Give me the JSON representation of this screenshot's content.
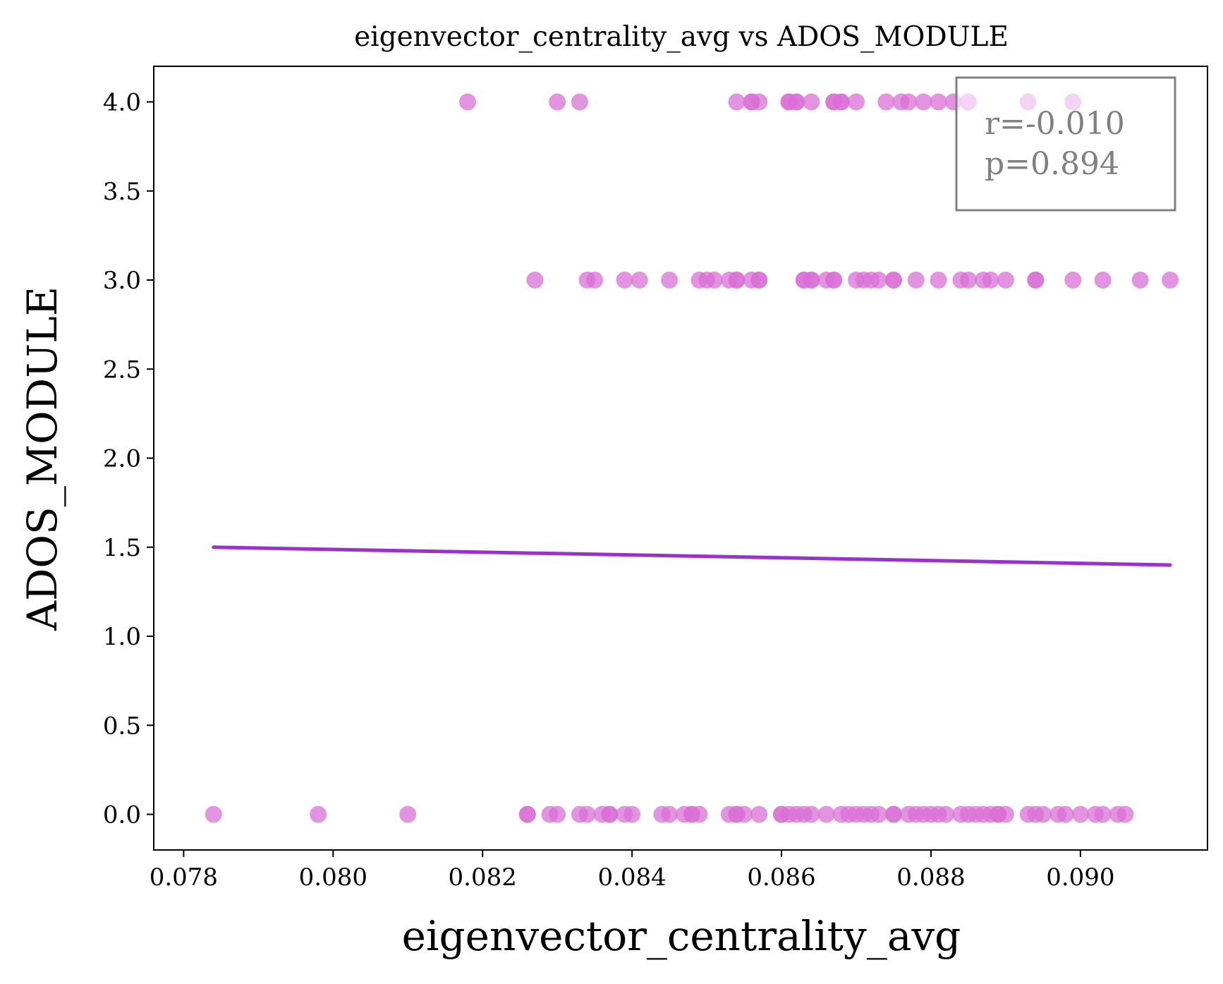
{
  "chart_data": {
    "type": "scatter",
    "title": "eigenvector_centrality_avg vs ADOS_MODULE",
    "xlabel": "eigenvector_centrality_avg",
    "ylabel": "ADOS_MODULE",
    "xlim": [
      0.0776,
      0.0917
    ],
    "ylim": [
      -0.2,
      4.2
    ],
    "xticks": [
      0.078,
      0.08,
      0.082,
      0.084,
      0.086,
      0.088,
      0.09
    ],
    "xtick_labels": [
      "0.078",
      "0.080",
      "0.082",
      "0.084",
      "0.086",
      "0.088",
      "0.090"
    ],
    "yticks": [
      0.0,
      0.5,
      1.0,
      1.5,
      2.0,
      2.5,
      3.0,
      3.5,
      4.0
    ],
    "ytick_labels": [
      "0.0",
      "0.5",
      "1.0",
      "1.5",
      "2.0",
      "2.5",
      "3.0",
      "3.5",
      "4.0"
    ],
    "grid": false,
    "point_color": "#da70d6",
    "line_color": "#9932cc",
    "series": [
      {
        "name": "ADOS_MODULE 4",
        "y": 4,
        "x": [
          0.0818,
          0.083,
          0.0833,
          0.0854,
          0.0856,
          0.0856,
          0.0857,
          0.0861,
          0.0861,
          0.0862,
          0.0862,
          0.0864,
          0.0867,
          0.0867,
          0.0868,
          0.0868,
          0.087,
          0.0874,
          0.0876,
          0.0877,
          0.0879,
          0.0881,
          0.0883,
          0.0885,
          0.0893,
          0.0899
        ]
      },
      {
        "name": "ADOS_MODULE 3",
        "y": 3,
        "x": [
          0.0827,
          0.0834,
          0.0835,
          0.0839,
          0.0841,
          0.0845,
          0.0849,
          0.085,
          0.0851,
          0.0853,
          0.0854,
          0.0854,
          0.0856,
          0.0857,
          0.0857,
          0.0863,
          0.0863,
          0.0864,
          0.0864,
          0.0866,
          0.0867,
          0.0867,
          0.087,
          0.0871,
          0.0872,
          0.0873,
          0.0875,
          0.0875,
          0.0878,
          0.0881,
          0.0884,
          0.0885,
          0.0887,
          0.0888,
          0.089,
          0.0894,
          0.0894,
          0.0899,
          0.0903,
          0.0908,
          0.0912
        ]
      },
      {
        "name": "ADOS_MODULE 0",
        "y": 0,
        "x": [
          0.0784,
          0.0798,
          0.081,
          0.0826,
          0.0826,
          0.0829,
          0.083,
          0.0833,
          0.0834,
          0.0836,
          0.0837,
          0.0837,
          0.0839,
          0.084,
          0.0844,
          0.0845,
          0.0847,
          0.0848,
          0.0848,
          0.0849,
          0.0853,
          0.0854,
          0.0854,
          0.0855,
          0.0857,
          0.086,
          0.086,
          0.0861,
          0.0862,
          0.0863,
          0.0864,
          0.0866,
          0.0868,
          0.0869,
          0.087,
          0.0871,
          0.0872,
          0.0873,
          0.0875,
          0.0875,
          0.0877,
          0.0878,
          0.0879,
          0.088,
          0.0881,
          0.0882,
          0.0884,
          0.0885,
          0.0886,
          0.0887,
          0.0888,
          0.0889,
          0.0889,
          0.089,
          0.0893,
          0.0894,
          0.0895,
          0.0897,
          0.0898,
          0.09,
          0.0902,
          0.0903,
          0.0905,
          0.0906
        ]
      }
    ],
    "regression_line": {
      "x": [
        0.0784,
        0.0912
      ],
      "y": [
        1.5,
        1.4
      ]
    },
    "annotation": {
      "r_text": "r=-0.010",
      "p_text": "p=0.894",
      "placement": "top-right"
    }
  }
}
